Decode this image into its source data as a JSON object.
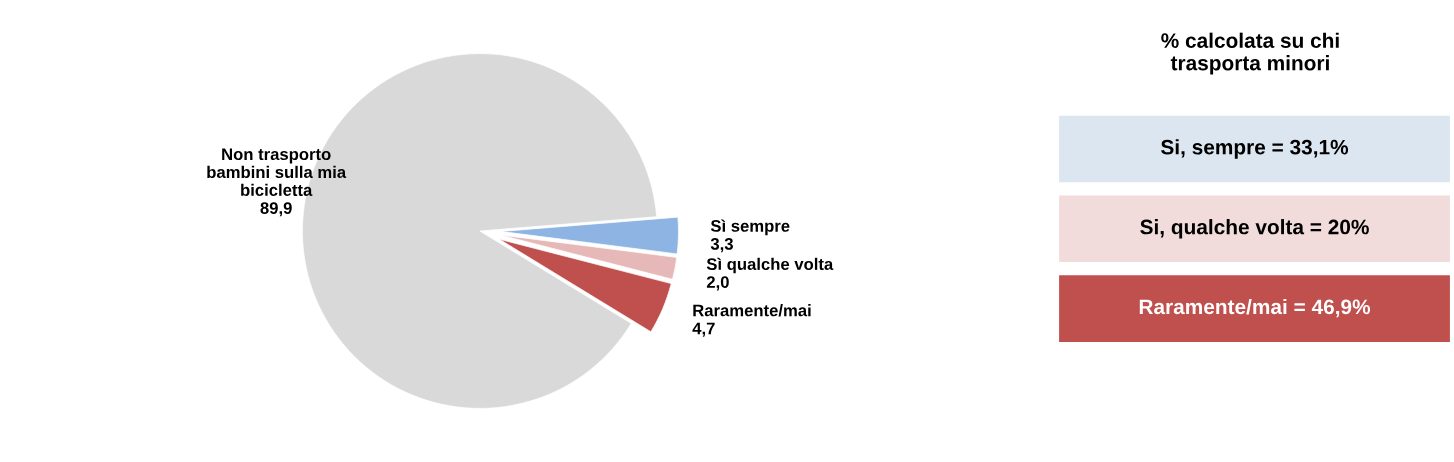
{
  "chart_data": [
    {
      "type": "pie",
      "categories": [
        "Non trasporto\nbambini sulla mia\nbicicletta",
        "Sì sempre",
        "Sì qualche volta",
        "Raramente/mai"
      ],
      "values": [
        89.9,
        3.3,
        2.0,
        4.7
      ],
      "value_labels": [
        "89,9",
        "3,3",
        "2,0",
        "4,7"
      ],
      "colors": [
        "#d9d9d9",
        "#8db4e2",
        "#e6b9b8",
        "#c0504d"
      ]
    },
    {
      "type": "other",
      "title": "% calcolata su chi\ntrasporta minori",
      "annotations": [
        "Si, sempre = 33,1%",
        "Si, qualche volta = 20%",
        "Raramente/mai = 46,9%"
      ],
      "colors": [
        "#dce6f1",
        "#f2dcdb",
        "#c0504d"
      ]
    }
  ]
}
